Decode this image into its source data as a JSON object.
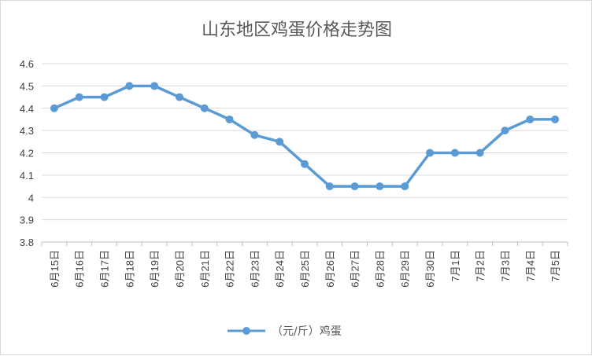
{
  "chart_data": {
    "type": "line",
    "title": "山东地区鸡蛋价格走势图",
    "categories": [
      "6月15日",
      "6月16日",
      "6月17日",
      "6月18日",
      "6月19日",
      "6月20日",
      "6月21日",
      "6月22日",
      "6月23日",
      "6月24日",
      "6月25日",
      "6月26日",
      "6月27日",
      "6月28日",
      "6月29日",
      "6月30日",
      "7月1日",
      "7月2日",
      "7月3日",
      "7月4日",
      "7月5日"
    ],
    "series": [
      {
        "name": "（元/斤）鸡蛋",
        "values": [
          4.4,
          4.45,
          4.45,
          4.5,
          4.5,
          4.45,
          4.4,
          4.35,
          4.28,
          4.25,
          4.15,
          4.05,
          4.05,
          4.05,
          4.05,
          4.2,
          4.2,
          4.2,
          4.3,
          4.35,
          4.35
        ]
      }
    ],
    "y_ticks": [
      "4.6",
      "4.5",
      "4.4",
      "4.3",
      "4.2",
      "4.1",
      "4",
      "3.9",
      "3.8"
    ],
    "ylim": [
      3.8,
      4.6
    ],
    "xlabel": "",
    "ylabel": "",
    "grid": true,
    "legend_position": "bottom",
    "colors": {
      "series": "#5b9bd5",
      "grid": "#d9d9d9",
      "text": "#595959"
    }
  }
}
